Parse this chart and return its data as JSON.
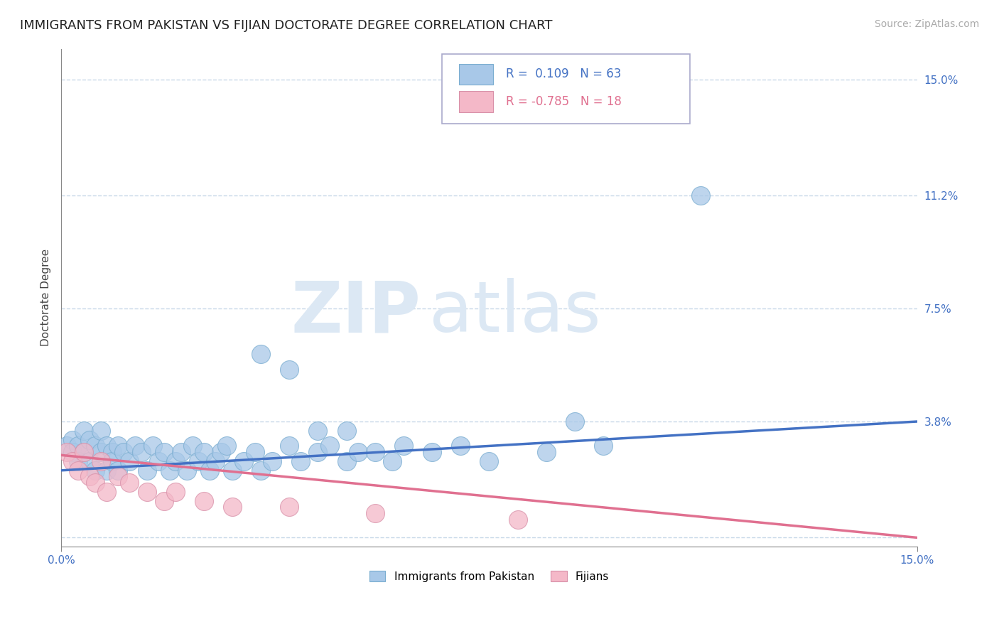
{
  "title": "IMMIGRANTS FROM PAKISTAN VS FIJIAN DOCTORATE DEGREE CORRELATION CHART",
  "source": "Source: ZipAtlas.com",
  "ylabel": "Doctorate Degree",
  "ytick_positions": [
    0.0,
    0.038,
    0.075,
    0.112,
    0.15
  ],
  "ytick_labels": [
    "",
    "3.8%",
    "7.5%",
    "11.2%",
    "15.0%"
  ],
  "xlim": [
    0.0,
    0.15
  ],
  "ylim": [
    -0.003,
    0.16
  ],
  "blue_R": 0.109,
  "blue_N": 63,
  "pink_R": -0.785,
  "pink_N": 18,
  "blue_color": "#a8c8e8",
  "pink_color": "#f4b8c8",
  "blue_line_color": "#4472c4",
  "pink_line_color": "#e07090",
  "legend_text_blue_color": "#4472c4",
  "legend_text_pink_color": "#e07090",
  "legend_label_blue": "Immigrants from Pakistan",
  "legend_label_pink": "Fijians",
  "watermark_ZIP": "ZIP",
  "watermark_atlas": "atlas",
  "watermark_color": "#dce8f4",
  "grid_color": "#c8d8e8",
  "background_color": "#ffffff",
  "title_fontsize": 13,
  "axis_label_fontsize": 11,
  "tick_fontsize": 11,
  "blue_scatter_x": [
    0.001,
    0.002,
    0.002,
    0.003,
    0.003,
    0.004,
    0.004,
    0.005,
    0.005,
    0.006,
    0.006,
    0.007,
    0.007,
    0.008,
    0.008,
    0.009,
    0.009,
    0.01,
    0.01,
    0.011,
    0.012,
    0.013,
    0.014,
    0.015,
    0.016,
    0.017,
    0.018,
    0.019,
    0.02,
    0.021,
    0.022,
    0.023,
    0.024,
    0.025,
    0.026,
    0.027,
    0.028,
    0.029,
    0.03,
    0.032,
    0.034,
    0.035,
    0.037,
    0.04,
    0.042,
    0.045,
    0.047,
    0.05,
    0.052,
    0.055,
    0.058,
    0.06,
    0.065,
    0.07,
    0.075,
    0.085,
    0.095,
    0.035,
    0.04,
    0.045,
    0.05,
    0.09,
    0.112
  ],
  "blue_scatter_y": [
    0.03,
    0.032,
    0.028,
    0.03,
    0.025,
    0.035,
    0.028,
    0.032,
    0.025,
    0.03,
    0.022,
    0.035,
    0.028,
    0.03,
    0.022,
    0.028,
    0.025,
    0.03,
    0.022,
    0.028,
    0.025,
    0.03,
    0.028,
    0.022,
    0.03,
    0.025,
    0.028,
    0.022,
    0.025,
    0.028,
    0.022,
    0.03,
    0.025,
    0.028,
    0.022,
    0.025,
    0.028,
    0.03,
    0.022,
    0.025,
    0.028,
    0.022,
    0.025,
    0.03,
    0.025,
    0.028,
    0.03,
    0.025,
    0.028,
    0.028,
    0.025,
    0.03,
    0.028,
    0.03,
    0.025,
    0.028,
    0.03,
    0.06,
    0.055,
    0.035,
    0.035,
    0.038,
    0.112
  ],
  "pink_scatter_x": [
    0.001,
    0.002,
    0.003,
    0.004,
    0.005,
    0.006,
    0.007,
    0.008,
    0.01,
    0.012,
    0.015,
    0.018,
    0.02,
    0.025,
    0.03,
    0.04,
    0.055,
    0.08
  ],
  "pink_scatter_y": [
    0.028,
    0.025,
    0.022,
    0.028,
    0.02,
    0.018,
    0.025,
    0.015,
    0.02,
    0.018,
    0.015,
    0.012,
    0.015,
    0.012,
    0.01,
    0.01,
    0.008,
    0.006
  ],
  "blue_trend_x": [
    0.0,
    0.15
  ],
  "blue_trend_y": [
    0.022,
    0.038
  ],
  "pink_trend_x": [
    0.0,
    0.15
  ],
  "pink_trend_y": [
    0.027,
    0.0
  ]
}
